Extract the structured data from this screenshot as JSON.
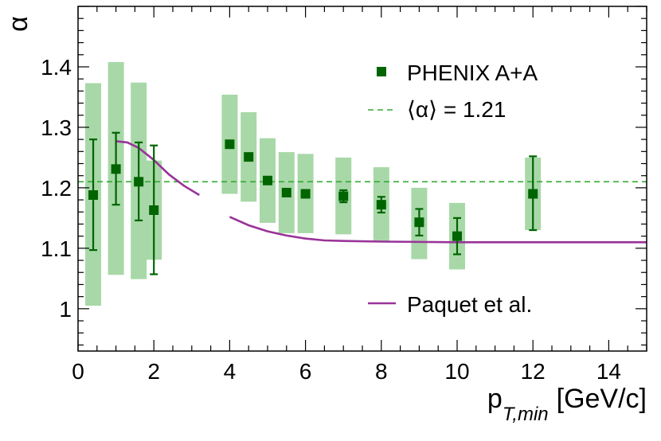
{
  "chart_data": {
    "type": "scatter",
    "title": "",
    "xlabel": "p",
    "xlabel_sub": "T,min",
    "xlabel_unit": "[GeV/c]",
    "ylabel": "α",
    "xlim": [
      0,
      15
    ],
    "ylim": [
      0.93,
      1.5
    ],
    "x_ticks": [
      0,
      2,
      4,
      6,
      8,
      10,
      12,
      14
    ],
    "x_tick_labels": [
      "0",
      "2",
      "4",
      "6",
      "8",
      "10",
      "12",
      "14"
    ],
    "y_ticks": [
      1.0,
      1.1,
      1.2,
      1.3,
      1.4
    ],
    "y_tick_labels": [
      "1",
      "1.1",
      "1.2",
      "1.3",
      "1.4"
    ],
    "grid": false,
    "legend_position": "right",
    "series": [
      {
        "name": "PHENIX A+A",
        "kind": "points",
        "color": "#006400",
        "sys_color": "#a8d8a8",
        "points": [
          {
            "x": 0.4,
            "y": 1.188,
            "stat": [
              1.097,
              1.28
            ],
            "sys": [
              1.005,
              1.373
            ]
          },
          {
            "x": 1.0,
            "y": 1.231,
            "stat": [
              1.172,
              1.291
            ],
            "sys": [
              1.056,
              1.408
            ]
          },
          {
            "x": 1.6,
            "y": 1.21,
            "stat": [
              1.146,
              1.275
            ],
            "sys": [
              1.049,
              1.374
            ]
          },
          {
            "x": 2.0,
            "y": 1.163,
            "stat": [
              1.057,
              1.27
            ],
            "sys": [
              1.081,
              1.245
            ]
          },
          {
            "x": 4.0,
            "y": 1.272,
            "stat": [
              1.266,
              1.278
            ],
            "sys": [
              1.19,
              1.354
            ]
          },
          {
            "x": 4.5,
            "y": 1.251,
            "stat": [
              1.246,
              1.256
            ],
            "sys": [
              1.177,
              1.325
            ]
          },
          {
            "x": 5.0,
            "y": 1.212,
            "stat": [
              1.207,
              1.217
            ],
            "sys": [
              1.142,
              1.282
            ]
          },
          {
            "x": 5.5,
            "y": 1.192,
            "stat": [
              1.186,
              1.198
            ],
            "sys": [
              1.125,
              1.259
            ]
          },
          {
            "x": 6.0,
            "y": 1.19,
            "stat": [
              1.184,
              1.196
            ],
            "sys": [
              1.125,
              1.256
            ]
          },
          {
            "x": 7.0,
            "y": 1.186,
            "stat": [
              1.176,
              1.196
            ],
            "sys": [
              1.123,
              1.25
            ]
          },
          {
            "x": 8.0,
            "y": 1.172,
            "stat": [
              1.159,
              1.185
            ],
            "sys": [
              1.111,
              1.234
            ]
          },
          {
            "x": 9.0,
            "y": 1.143,
            "stat": [
              1.121,
              1.165
            ],
            "sys": [
              1.082,
              1.2
            ]
          },
          {
            "x": 10.0,
            "y": 1.12,
            "stat": [
              1.09,
              1.15
            ],
            "sys": [
              1.065,
              1.175
            ]
          },
          {
            "x": 12.0,
            "y": 1.19,
            "stat": [
              1.13,
              1.252
            ],
            "sys": [
              1.13,
              1.25
            ]
          }
        ]
      },
      {
        "name": "⟨α⟩ = 1.21",
        "kind": "hline",
        "color": "#33aa33",
        "y": 1.21
      },
      {
        "name": "Paquet et al.",
        "kind": "curve",
        "color": "#993399",
        "segments": [
          [
            [
              1.0,
              1.277
            ],
            [
              1.3,
              1.275
            ],
            [
              1.6,
              1.266
            ],
            [
              2.0,
              1.246
            ],
            [
              2.4,
              1.222
            ],
            [
              2.8,
              1.203
            ],
            [
              3.2,
              1.188
            ]
          ],
          [
            [
              4.0,
              1.152
            ],
            [
              4.5,
              1.138
            ],
            [
              5.0,
              1.128
            ],
            [
              5.5,
              1.121
            ],
            [
              6.0,
              1.116
            ],
            [
              6.5,
              1.113
            ],
            [
              7.0,
              1.112
            ],
            [
              8.0,
              1.111
            ],
            [
              10.0,
              1.11
            ],
            [
              12.0,
              1.11
            ],
            [
              15.0,
              1.11
            ]
          ]
        ]
      }
    ]
  }
}
